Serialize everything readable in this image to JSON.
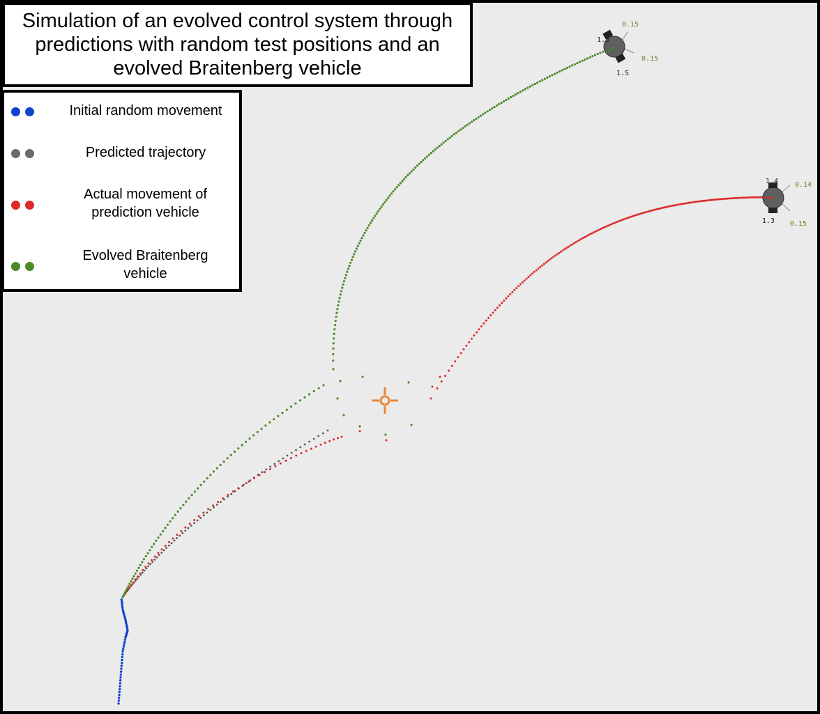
{
  "title": "Simulation of an evolved control system through predictions with random test positions and an evolved Braitenberg vehicle",
  "legend": [
    {
      "label": "Initial random movement",
      "color": "#1144cc"
    },
    {
      "label": "Predicted trajectory",
      "color": "#6b6b6b"
    },
    {
      "label": "Actual movement of prediction vehicle",
      "color": "#dd2a2a"
    },
    {
      "label": "Evolved Braitenberg vehicle",
      "color": "#4f8a2a"
    }
  ],
  "colors": {
    "arena_bg": "#ebebeb",
    "random": "#1144cc",
    "predicted": "#555555",
    "actual": "#dd2a2a",
    "braitenberg": "#4f8a2a",
    "target": "#e8883a",
    "robot_body": "#5f5f5f",
    "sensor_text_dark": "#222222",
    "sensor_text_olive": "#7a7a2a"
  },
  "target_icon": "crosshair-target-icon",
  "robots": [
    {
      "name": "braitenberg-robot",
      "labels": {
        "top": "0.15",
        "right": "0.15",
        "bottom": "1.5",
        "left": "1.5"
      }
    },
    {
      "name": "prediction-robot",
      "labels": {
        "top": "1.4",
        "right_top": "0.14",
        "bottom": "1.3",
        "right_bottom": "0.15"
      }
    }
  ]
}
